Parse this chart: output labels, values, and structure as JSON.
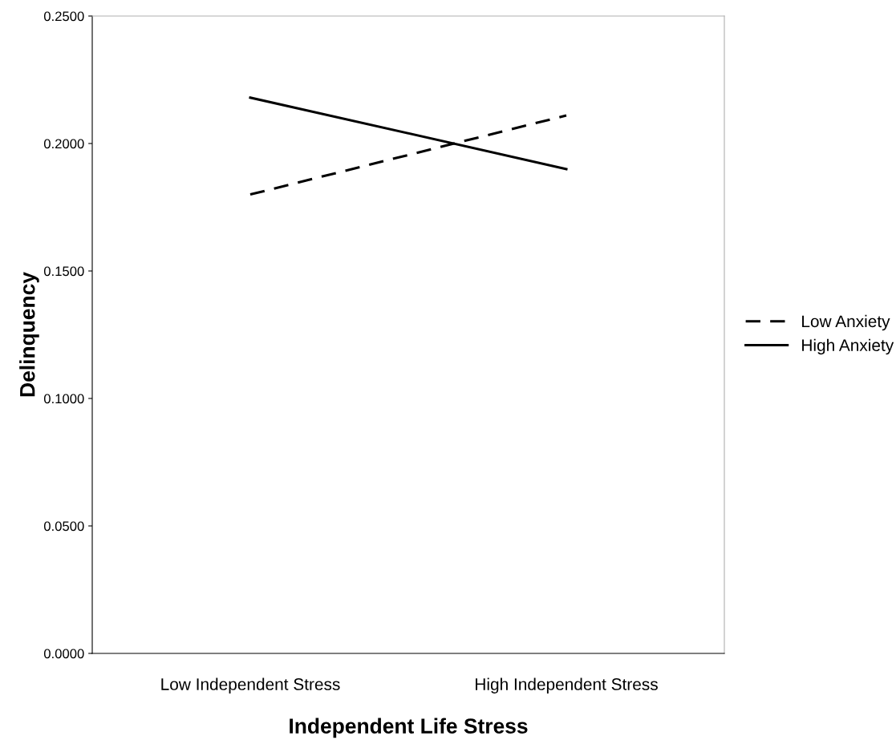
{
  "chart_data": {
    "type": "line",
    "xlabel": "Independent Life Stress",
    "ylabel": "Delinquency",
    "categories": [
      "Low Independent Stress",
      "High Independent Stress"
    ],
    "series": [
      {
        "name": "Low Anxiety",
        "color": "#000000",
        "line_style": "dashed",
        "values": [
          0.18,
          0.211
        ]
      },
      {
        "name": "High Anxiety",
        "color": "#000000",
        "line_style": "solid",
        "values": [
          0.218,
          0.19
        ]
      }
    ],
    "ylim": [
      0,
      0.25
    ],
    "yticks": [
      {
        "value": 0,
        "label": "0.0000"
      },
      {
        "value": 0.05,
        "label": "0.0500"
      },
      {
        "value": 0.1,
        "label": "0.1000"
      },
      {
        "value": 0.15,
        "label": "0.1500"
      },
      {
        "value": 0.2,
        "label": "0.2000"
      },
      {
        "value": 0.25,
        "label": "0.2500"
      }
    ],
    "grid": false,
    "legend": "right",
    "marker": "none"
  }
}
